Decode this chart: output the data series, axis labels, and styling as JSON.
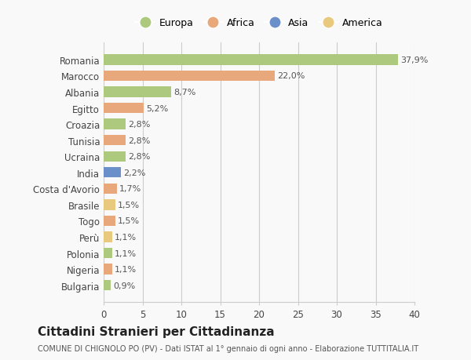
{
  "countries": [
    "Romania",
    "Marocco",
    "Albania",
    "Egitto",
    "Croazia",
    "Tunisia",
    "Ucraina",
    "India",
    "Costa d'Avorio",
    "Brasile",
    "Togo",
    "Perù",
    "Polonia",
    "Nigeria",
    "Bulgaria"
  ],
  "values": [
    37.9,
    22.0,
    8.7,
    5.2,
    2.8,
    2.8,
    2.8,
    2.2,
    1.7,
    1.5,
    1.5,
    1.1,
    1.1,
    1.1,
    0.9
  ],
  "labels": [
    "37,9%",
    "22,0%",
    "8,7%",
    "5,2%",
    "2,8%",
    "2,8%",
    "2,8%",
    "2,2%",
    "1,7%",
    "1,5%",
    "1,5%",
    "1,1%",
    "1,1%",
    "1,1%",
    "0,9%"
  ],
  "colors": [
    "#adc97e",
    "#e8a87c",
    "#adc97e",
    "#e8a87c",
    "#adc97e",
    "#e8a87c",
    "#adc97e",
    "#6b8fc9",
    "#e8a87c",
    "#e8c97e",
    "#e8a87c",
    "#e8c97e",
    "#adc97e",
    "#e8a87c",
    "#adc97e"
  ],
  "legend_labels": [
    "Europa",
    "Africa",
    "Asia",
    "America"
  ],
  "legend_colors": [
    "#adc97e",
    "#e8a87c",
    "#6b8fc9",
    "#e8c97e"
  ],
  "title": "Cittadini Stranieri per Cittadinanza",
  "subtitle": "COMUNE DI CHIGNOLO PO (PV) - Dati ISTAT al 1° gennaio di ogni anno - Elaborazione TUTTITALIA.IT",
  "xlim": [
    0,
    40
  ],
  "xticks": [
    0,
    5,
    10,
    15,
    20,
    25,
    30,
    35,
    40
  ],
  "background_color": "#f9f9f9",
  "grid_color": "#cccccc"
}
